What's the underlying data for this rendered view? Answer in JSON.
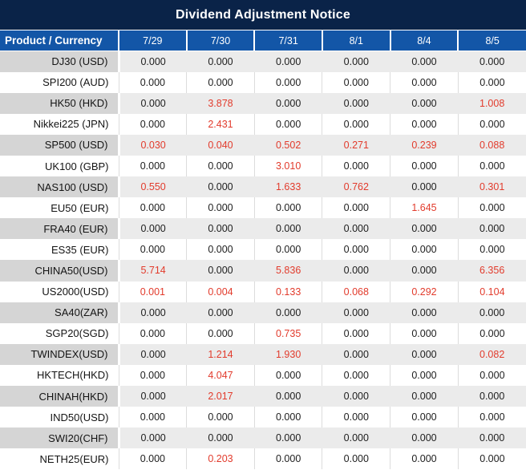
{
  "title": "Dividend Adjustment Notice",
  "table": {
    "product_header": "Product / Currency",
    "date_headers": [
      "7/29",
      "7/30",
      "7/31",
      "8/1",
      "8/4",
      "8/5"
    ],
    "rows": [
      {
        "product": "DJ30 (USD)",
        "values": [
          "0.000",
          "0.000",
          "0.000",
          "0.000",
          "0.000",
          "0.000"
        ],
        "red": [
          false,
          false,
          false,
          false,
          false,
          false
        ]
      },
      {
        "product": "SPI200 (AUD)",
        "values": [
          "0.000",
          "0.000",
          "0.000",
          "0.000",
          "0.000",
          "0.000"
        ],
        "red": [
          false,
          false,
          false,
          false,
          false,
          false
        ]
      },
      {
        "product": "HK50 (HKD)",
        "values": [
          "0.000",
          "3.878",
          "0.000",
          "0.000",
          "0.000",
          "1.008"
        ],
        "red": [
          false,
          true,
          false,
          false,
          false,
          true
        ]
      },
      {
        "product": "Nikkei225 (JPN)",
        "values": [
          "0.000",
          "2.431",
          "0.000",
          "0.000",
          "0.000",
          "0.000"
        ],
        "red": [
          false,
          true,
          false,
          false,
          false,
          false
        ]
      },
      {
        "product": "SP500 (USD)",
        "values": [
          "0.030",
          "0.040",
          "0.502",
          "0.271",
          "0.239",
          "0.088"
        ],
        "red": [
          true,
          true,
          true,
          true,
          true,
          true
        ]
      },
      {
        "product": "UK100 (GBP)",
        "values": [
          "0.000",
          "0.000",
          "3.010",
          "0.000",
          "0.000",
          "0.000"
        ],
        "red": [
          false,
          false,
          true,
          false,
          false,
          false
        ]
      },
      {
        "product": "NAS100 (USD)",
        "values": [
          "0.550",
          "0.000",
          "1.633",
          "0.762",
          "0.000",
          "0.301"
        ],
        "red": [
          true,
          false,
          true,
          true,
          false,
          true
        ]
      },
      {
        "product": "EU50 (EUR)",
        "values": [
          "0.000",
          "0.000",
          "0.000",
          "0.000",
          "1.645",
          "0.000"
        ],
        "red": [
          false,
          false,
          false,
          false,
          true,
          false
        ]
      },
      {
        "product": "FRA40 (EUR)",
        "values": [
          "0.000",
          "0.000",
          "0.000",
          "0.000",
          "0.000",
          "0.000"
        ],
        "red": [
          false,
          false,
          false,
          false,
          false,
          false
        ]
      },
      {
        "product": "ES35 (EUR)",
        "values": [
          "0.000",
          "0.000",
          "0.000",
          "0.000",
          "0.000",
          "0.000"
        ],
        "red": [
          false,
          false,
          false,
          false,
          false,
          false
        ]
      },
      {
        "product": "CHINA50(USD)",
        "values": [
          "5.714",
          "0.000",
          "5.836",
          "0.000",
          "0.000",
          "6.356"
        ],
        "red": [
          true,
          false,
          true,
          false,
          false,
          true
        ]
      },
      {
        "product": "US2000(USD)",
        "values": [
          "0.001",
          "0.004",
          "0.133",
          "0.068",
          "0.292",
          "0.104"
        ],
        "red": [
          true,
          true,
          true,
          true,
          true,
          true
        ]
      },
      {
        "product": "SA40(ZAR)",
        "values": [
          "0.000",
          "0.000",
          "0.000",
          "0.000",
          "0.000",
          "0.000"
        ],
        "red": [
          false,
          false,
          false,
          false,
          false,
          false
        ]
      },
      {
        "product": "SGP20(SGD)",
        "values": [
          "0.000",
          "0.000",
          "0.735",
          "0.000",
          "0.000",
          "0.000"
        ],
        "red": [
          false,
          false,
          true,
          false,
          false,
          false
        ]
      },
      {
        "product": "TWINDEX(USD)",
        "values": [
          "0.000",
          "1.214",
          "1.930",
          "0.000",
          "0.000",
          "0.082"
        ],
        "red": [
          false,
          true,
          true,
          false,
          false,
          true
        ]
      },
      {
        "product": "HKTECH(HKD)",
        "values": [
          "0.000",
          "4.047",
          "0.000",
          "0.000",
          "0.000",
          "0.000"
        ],
        "red": [
          false,
          true,
          false,
          false,
          false,
          false
        ]
      },
      {
        "product": "CHINAH(HKD)",
        "values": [
          "0.000",
          "2.017",
          "0.000",
          "0.000",
          "0.000",
          "0.000"
        ],
        "red": [
          false,
          true,
          false,
          false,
          false,
          false
        ]
      },
      {
        "product": "IND50(USD)",
        "values": [
          "0.000",
          "0.000",
          "0.000",
          "0.000",
          "0.000",
          "0.000"
        ],
        "red": [
          false,
          false,
          false,
          false,
          false,
          false
        ]
      },
      {
        "product": "SWI20(CHF)",
        "values": [
          "0.000",
          "0.000",
          "0.000",
          "0.000",
          "0.000",
          "0.000"
        ],
        "red": [
          false,
          false,
          false,
          false,
          false,
          false
        ]
      },
      {
        "product": "NETH25(EUR)",
        "values": [
          "0.000",
          "0.203",
          "0.000",
          "0.000",
          "0.000",
          "0.000"
        ],
        "red": [
          false,
          true,
          false,
          false,
          false,
          false
        ]
      }
    ]
  },
  "colors": {
    "title_bar_bg": "#0a2348",
    "header_bg": "#1356a7",
    "header_text": "#ffffff",
    "stripe_product_bg": "#d5d5d5",
    "stripe_value_bg": "#ebebeb",
    "white_row_bg": "#ffffff",
    "white_row_divider": "#dcdcdc",
    "zero_value_text": "#1d1d1d",
    "highlight_value_text": "#e23b2c"
  }
}
